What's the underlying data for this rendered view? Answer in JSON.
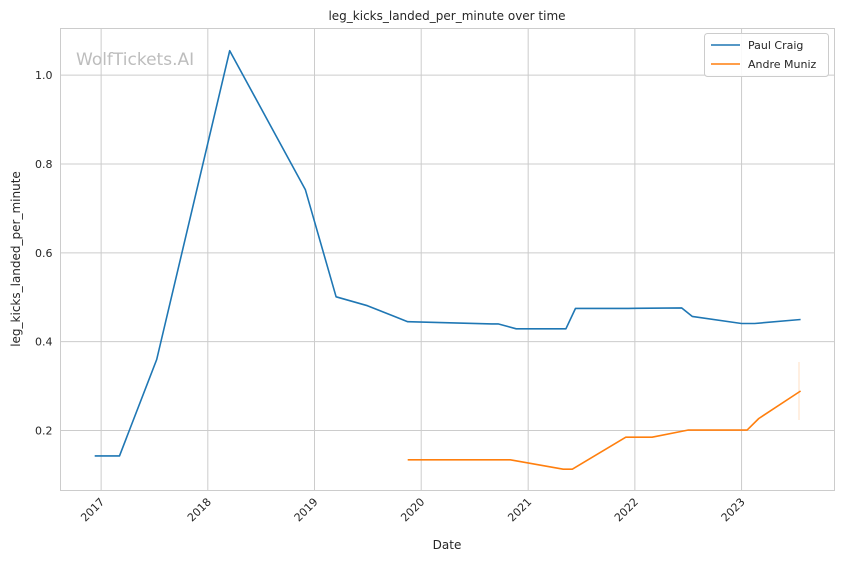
{
  "watermark": "WolfTickets.AI",
  "chart_data": {
    "type": "line",
    "title": "leg_kicks_landed_per_minute over time",
    "xlabel": "Date",
    "ylabel": "leg_kicks_landed_per_minute",
    "x_ticks": [
      "2017",
      "2018",
      "2019",
      "2020",
      "2021",
      "2022",
      "2023"
    ],
    "y_ticks": [
      "0.2",
      "0.4",
      "0.6",
      "0.8",
      "1.0"
    ],
    "xlim": [
      "2016-08-15",
      "2023-11-15"
    ],
    "ylim": [
      0.065,
      1.105
    ],
    "grid": true,
    "legend_position": "top-right",
    "series": [
      {
        "name": "Paul Craig",
        "color": "#1f77b4",
        "points": [
          [
            "2016-12-10",
            0.143
          ],
          [
            "2017-03-05",
            0.143
          ],
          [
            "2017-07-10",
            0.36
          ],
          [
            "2018-03-17",
            1.055
          ],
          [
            "2018-12-01",
            0.742
          ],
          [
            "2019-03-16",
            0.501
          ],
          [
            "2019-07-01",
            0.481
          ],
          [
            "2019-10-01",
            0.457
          ],
          [
            "2019-11-16",
            0.445
          ],
          [
            "2020-08-29",
            0.44
          ],
          [
            "2020-09-20",
            0.44
          ],
          [
            "2020-11-21",
            0.429
          ],
          [
            "2021-05-10",
            0.429
          ],
          [
            "2021-06-12",
            0.475
          ],
          [
            "2021-12-10",
            0.475
          ],
          [
            "2022-06-10",
            0.476
          ],
          [
            "2022-07-16",
            0.457
          ],
          [
            "2023-01-01",
            0.441
          ],
          [
            "2023-02-15",
            0.441
          ],
          [
            "2023-07-22",
            0.45
          ]
        ]
      },
      {
        "name": "Andre Muniz",
        "color": "#ff7f0e",
        "points": [
          [
            "2019-11-16",
            0.134
          ],
          [
            "2020-11-01",
            0.134
          ],
          [
            "2021-05-01",
            0.113
          ],
          [
            "2021-06-01",
            0.113
          ],
          [
            "2021-12-01",
            0.185
          ],
          [
            "2022-03-01",
            0.185
          ],
          [
            "2022-07-01",
            0.201
          ],
          [
            "2023-01-20",
            0.201
          ],
          [
            "2023-03-01",
            0.227
          ],
          [
            "2023-07-22",
            0.289
          ]
        ]
      }
    ]
  }
}
